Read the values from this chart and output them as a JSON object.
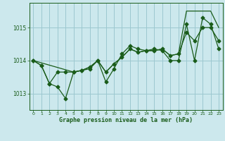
{
  "title": "Graphe pression niveau de la mer (hPa)",
  "background_color": "#cce8ed",
  "grid_color": "#9cc8d0",
  "line_color": "#1a5c1a",
  "xlim": [
    -0.5,
    23.5
  ],
  "ylim": [
    1012.5,
    1015.75
  ],
  "yticks": [
    1013,
    1014,
    1015
  ],
  "xticks": [
    0,
    1,
    2,
    3,
    4,
    5,
    6,
    7,
    8,
    9,
    10,
    11,
    12,
    13,
    14,
    15,
    16,
    17,
    18,
    19,
    20,
    21,
    22,
    23
  ],
  "series1_x": [
    0,
    1,
    2,
    3,
    4,
    5,
    6,
    7,
    8,
    9,
    10,
    11,
    12,
    13,
    14,
    15,
    16,
    17,
    18,
    19,
    20,
    21,
    22,
    23
  ],
  "series1_y": [
    1014.0,
    1013.85,
    1013.3,
    1013.2,
    1012.85,
    1013.65,
    1013.7,
    1013.75,
    1014.0,
    1013.35,
    1013.75,
    1014.2,
    1014.45,
    1014.35,
    1014.3,
    1014.35,
    1014.3,
    1014.0,
    1014.0,
    1015.1,
    1014.0,
    1015.3,
    1015.1,
    1014.35
  ],
  "series2_x": [
    0,
    1,
    2,
    3,
    4,
    5,
    6,
    7,
    8,
    9,
    10,
    11,
    12,
    13,
    14,
    15,
    16,
    17,
    18,
    19,
    20,
    21,
    22,
    23
  ],
  "series2_y": [
    1014.0,
    1013.85,
    1013.3,
    1013.65,
    1013.65,
    1013.65,
    1013.7,
    1013.8,
    1014.0,
    1013.65,
    1013.9,
    1014.1,
    1014.35,
    1014.25,
    1014.3,
    1014.3,
    1014.35,
    1014.15,
    1014.2,
    1014.85,
    1014.6,
    1015.0,
    1015.0,
    1014.6
  ],
  "series3_x": [
    0,
    5,
    6,
    7,
    8,
    9,
    10,
    11,
    12,
    13,
    14,
    15,
    16,
    17,
    18,
    19,
    20,
    21,
    22,
    23
  ],
  "series3_y": [
    1014.0,
    1013.65,
    1013.7,
    1013.8,
    1014.0,
    1013.65,
    1013.9,
    1014.1,
    1014.35,
    1014.25,
    1014.3,
    1014.3,
    1014.35,
    1014.15,
    1014.2,
    1015.5,
    1015.5,
    1015.5,
    1015.5,
    1015.0
  ]
}
